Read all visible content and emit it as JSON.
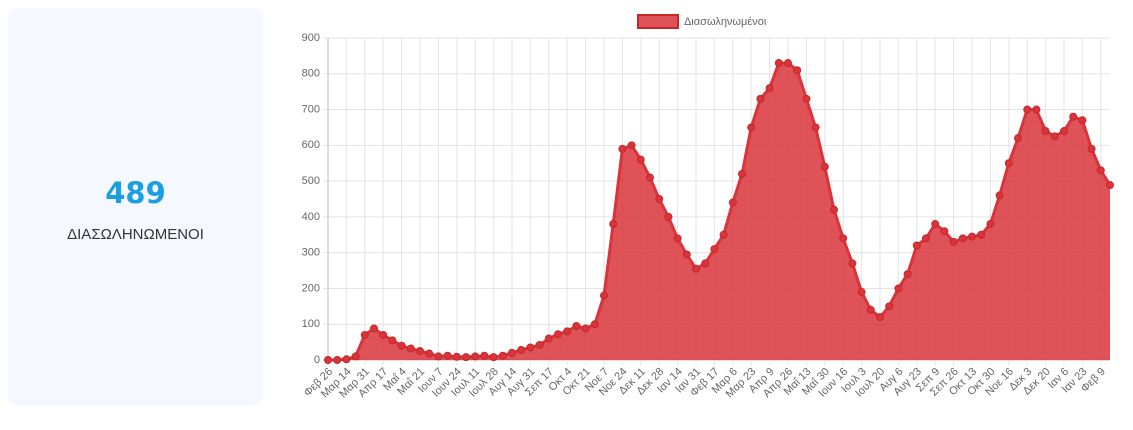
{
  "card": {
    "value": "489",
    "label": "ΔΙΑΣΩΛΗΝΩΜΕΝΟΙ"
  },
  "chart_data": {
    "type": "area",
    "categories": [
      "Φεβ 26",
      null,
      "Μαρ 14",
      null,
      "Μαρ 31",
      null,
      "Απρ 17",
      null,
      "Μαΐ 4",
      null,
      "Μαΐ 21",
      null,
      "Ιουν 7",
      null,
      "Ιουν 24",
      null,
      "Ιουλ 11",
      null,
      "Ιουλ 28",
      null,
      "Αυγ 14",
      null,
      "Αυγ 31",
      null,
      "Σεπ 17",
      null,
      "Οκτ 4",
      null,
      "Οκτ 21",
      null,
      "Νοε 7",
      null,
      "Νοε 24",
      null,
      "Δεκ 11",
      null,
      "Δεκ 28",
      null,
      "Ιαν 14",
      null,
      "Ιαν 31",
      null,
      "Φεβ 17",
      null,
      "Μαρ 6",
      null,
      "Μαρ 23",
      null,
      "Απρ 9",
      null,
      "Απρ 26",
      null,
      "Μαΐ 13",
      null,
      "Μαΐ 30",
      null,
      "Ιουν 16",
      null,
      "Ιουλ 3",
      null,
      "Ιουλ 20",
      null,
      "Αυγ 6",
      null,
      "Αυγ 23",
      null,
      "Σεπ 9",
      null,
      "Σεπ 26",
      null,
      "Οκτ 13",
      null,
      "Οκτ 30",
      null,
      "Νοε 16",
      null,
      "Δεκ 3",
      null,
      "Δεκ 20",
      null,
      "Ιαν 6",
      null,
      "Ιαν 23",
      null,
      "Φεβ 9",
      null
    ],
    "series": [
      {
        "name": "Διασωληνωμένοι",
        "color": "#d9343b",
        "values": [
          0,
          0,
          2,
          10,
          70,
          88,
          70,
          55,
          40,
          32,
          25,
          18,
          10,
          12,
          9,
          8,
          10,
          12,
          8,
          12,
          20,
          28,
          35,
          42,
          60,
          72,
          80,
          95,
          88,
          100,
          180,
          380,
          590,
          600,
          560,
          510,
          450,
          400,
          340,
          295,
          255,
          270,
          310,
          350,
          440,
          520,
          650,
          730,
          760,
          830,
          830,
          810,
          730,
          650,
          540,
          420,
          340,
          270,
          190,
          140,
          120,
          150,
          200,
          240,
          320,
          340,
          380,
          360,
          330,
          340,
          345,
          350,
          380,
          460,
          550,
          620,
          700,
          700,
          640,
          625,
          640,
          680,
          670,
          590,
          530,
          489
        ]
      }
    ],
    "ylim": [
      0,
      900
    ],
    "yticks": [
      0,
      100,
      200,
      300,
      400,
      500,
      600,
      700,
      800,
      900
    ],
    "grid": true,
    "legend": "top"
  }
}
